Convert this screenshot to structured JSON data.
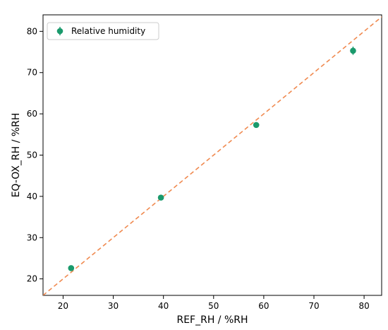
{
  "chart_data": {
    "type": "scatter",
    "title": "",
    "xlabel": "REF_RH / %RH",
    "ylabel": "EQ-OX_RH / %RH",
    "xlim": [
      16,
      83.5
    ],
    "ylim": [
      16,
      84
    ],
    "xticks": [
      20,
      30,
      40,
      50,
      60,
      70,
      80
    ],
    "yticks": [
      20,
      30,
      40,
      50,
      60,
      70,
      80
    ],
    "grid": false,
    "legend_position": "top-left",
    "series": [
      {
        "name": "Relative humidity",
        "color": "#1a9a6c",
        "marker": "circle-with-errorbar",
        "points": [
          {
            "x": 21.6,
            "y": 22.6,
            "err": 0.5
          },
          {
            "x": 39.5,
            "y": 39.7,
            "err": 0.4
          },
          {
            "x": 58.5,
            "y": 57.3,
            "err": 0.5
          },
          {
            "x": 77.8,
            "y": 75.3,
            "err": 1.0
          }
        ]
      }
    ],
    "reference_line": {
      "type": "identity",
      "style": "dashed",
      "color": "#f08a50"
    }
  }
}
